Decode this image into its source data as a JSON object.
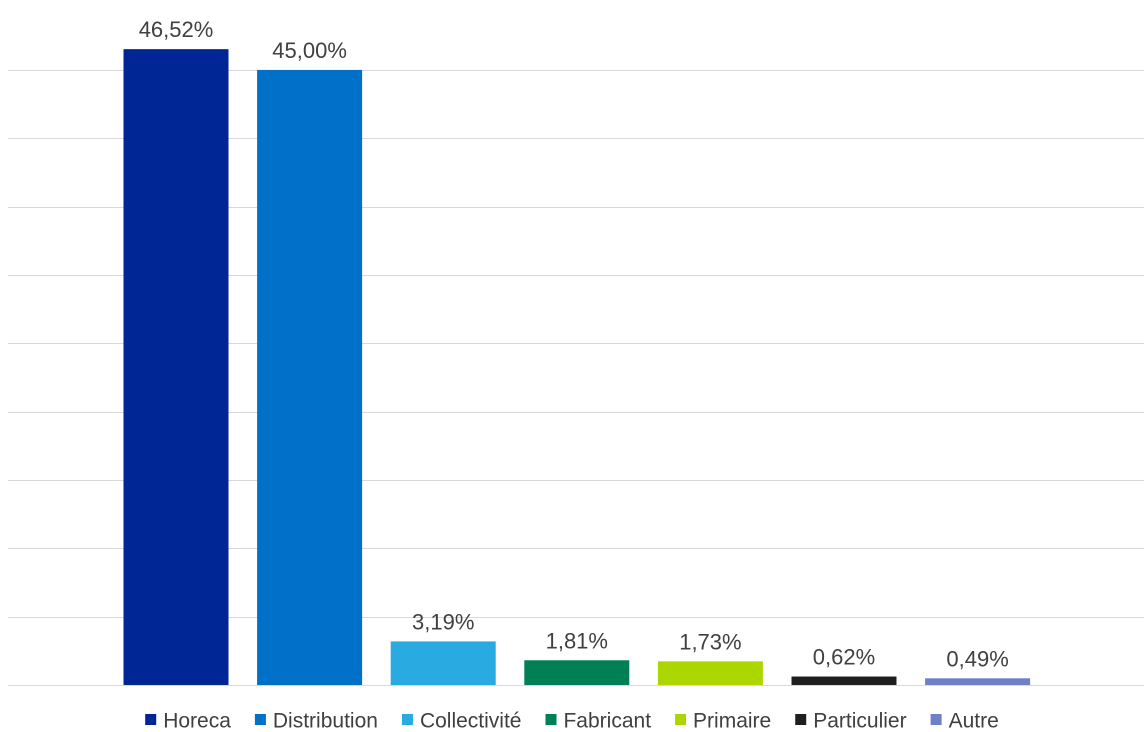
{
  "chart_data": {
    "type": "bar",
    "categories": [
      "Horeca",
      "Distribution",
      "Collectivité",
      "Fabricant",
      "Primaire",
      "Particulier",
      "Autre"
    ],
    "values": [
      46.52,
      45.0,
      3.19,
      1.81,
      1.73,
      0.62,
      0.49
    ],
    "data_labels": [
      "46,52%",
      "45,00%",
      "3,19%",
      "1,81%",
      "1,73%",
      "0,62%",
      "0,49%"
    ],
    "colors": [
      "#002594",
      "#0070c9",
      "#29abe2",
      "#008055",
      "#acd600",
      "#1f1f1f",
      "#6e80c8"
    ],
    "ylim": [
      0,
      50
    ],
    "y_gridline_step": 5,
    "grid": true,
    "legend_position": "bottom"
  }
}
